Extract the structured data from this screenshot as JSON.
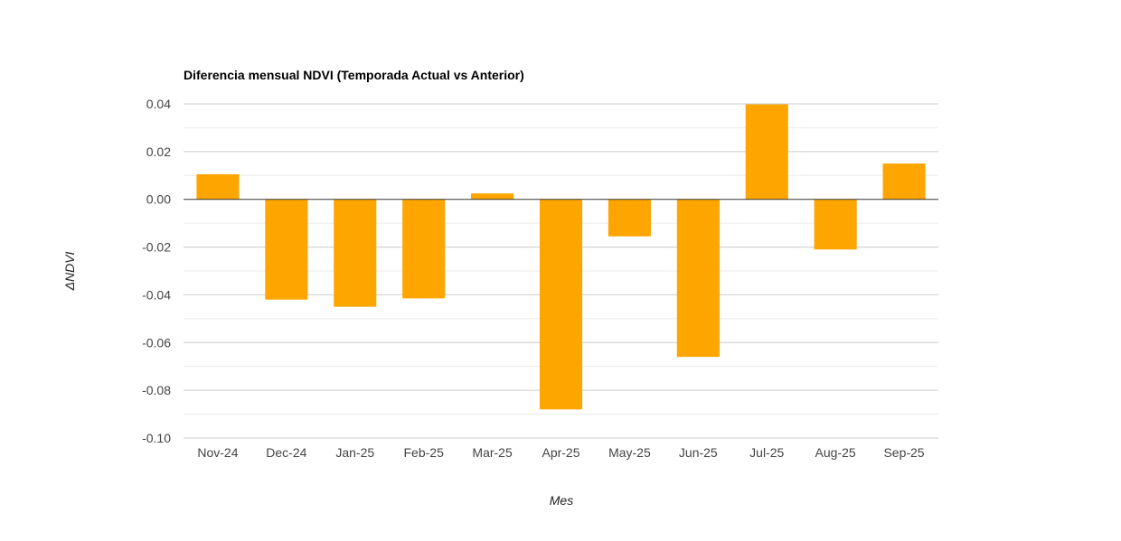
{
  "chart_data": {
    "type": "bar",
    "title": "Diferencia mensual NDVI (Temporada Actual vs Anterior)",
    "xlabel": "Mes",
    "ylabel": "ΔNDVI",
    "categories": [
      "Nov-24",
      "Dec-24",
      "Jan-25",
      "Feb-25",
      "Mar-25",
      "Apr-25",
      "May-25",
      "Jun-25",
      "Jul-25",
      "Aug-25",
      "Sep-25"
    ],
    "values": [
      0.0105,
      -0.042,
      -0.045,
      -0.0415,
      0.0025,
      -0.088,
      -0.0155,
      -0.066,
      0.0398,
      -0.021,
      0.015
    ],
    "ylim": [
      -0.1,
      0.04
    ],
    "yticks": [
      0.04,
      0.02,
      0.0,
      -0.02,
      -0.04,
      -0.06,
      -0.08,
      -0.1
    ],
    "ytick_labels": [
      "0.04",
      "0.02",
      "0.00",
      "-0.02",
      "-0.04",
      "-0.06",
      "-0.08",
      "-0.10"
    ],
    "minor_gridlines": true,
    "grid": true,
    "legend": "none",
    "colors": {
      "bar": "#FFA500",
      "gridline": "#cccccc",
      "minor_gridline": "#ebebeb",
      "baseline": "#333333"
    }
  }
}
